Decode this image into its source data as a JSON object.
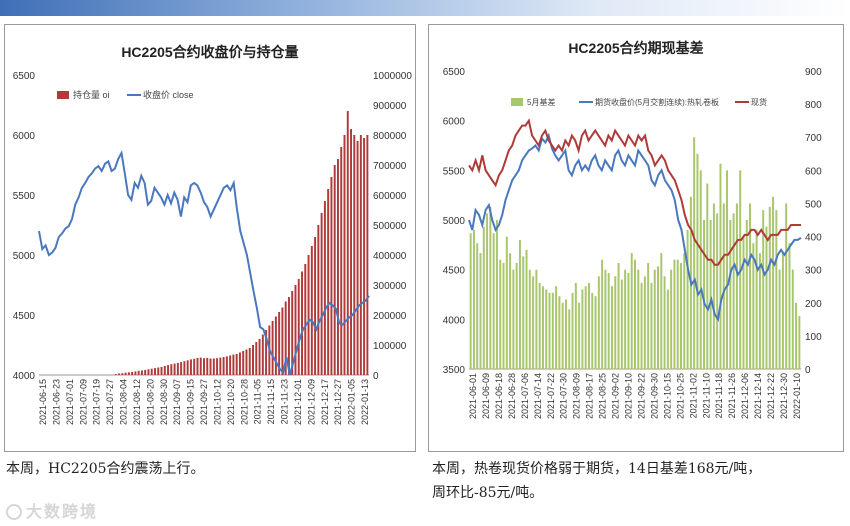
{
  "header": {
    "bar_color": "#3f6fb7"
  },
  "captions": {
    "left": "本周，HC2205合约震荡上行。",
    "right_line1": "本周，热卷现货价格弱于期货，14日基差168元/吨，",
    "right_line2": "周环比-85元/吨。"
  },
  "watermark": {
    "text": "大数跨境"
  },
  "chart_data": [
    {
      "type": "bar+line",
      "title": "HC2205合约收盘价与持仓量",
      "x_ticks": [
        "2021-06-15",
        "2021-06-23",
        "2021-07-01",
        "2021-07-09",
        "2021-07-19",
        "2021-07-27",
        "2021-08-04",
        "2021-08-12",
        "2021-08-20",
        "2021-08-30",
        "2021-09-07",
        "2021-09-15",
        "2021-09-27",
        "2021-10-12",
        "2021-10-20",
        "2021-10-28",
        "2021-11-05",
        "2021-11-15",
        "2021-11-23",
        "2021-12-01",
        "2021-12-09",
        "2021-12-17",
        "2021-12-27",
        "2022-01-05",
        "2022-01-13"
      ],
      "y_left": {
        "min": 4000,
        "max": 6500,
        "ticks": [
          4000,
          4500,
          5000,
          5500,
          6000,
          6500
        ]
      },
      "y_right": {
        "min": 0,
        "max": 1000000,
        "ticks": [
          0,
          100000,
          200000,
          300000,
          400000,
          500000,
          600000,
          700000,
          800000,
          900000,
          1000000
        ]
      },
      "legend": [
        "持仓量 oi",
        "收盘价 close"
      ],
      "colors": {
        "bar": "#b03a3a",
        "line": "#4a78be"
      },
      "close": [
        5200,
        5050,
        5080,
        5000,
        5020,
        5060,
        5150,
        5180,
        5220,
        5240,
        5300,
        5420,
        5480,
        5560,
        5600,
        5650,
        5680,
        5720,
        5740,
        5700,
        5760,
        5780,
        5700,
        5720,
        5800,
        5850,
        5680,
        5500,
        5460,
        5600,
        5560,
        5660,
        5600,
        5420,
        5450,
        5560,
        5520,
        5480,
        5420,
        5500,
        5430,
        5520,
        5460,
        5320,
        5480,
        5440,
        5580,
        5600,
        5580,
        5520,
        5440,
        5400,
        5320,
        5380,
        5440,
        5500,
        5560,
        5580,
        5540,
        5600,
        5380,
        5200,
        5100,
        5000,
        4850,
        4700,
        4560,
        4400,
        4380,
        4300,
        4200,
        4150,
        4100,
        4050,
        4020,
        4150,
        4000,
        4100,
        4200,
        4300,
        4380,
        4420,
        4460,
        4440,
        4380,
        4450,
        4500,
        4560,
        4600,
        4580,
        4550,
        4430,
        4420,
        4450,
        4480,
        4500,
        4540,
        4580,
        4600,
        4620,
        4660
      ],
      "oi": [
        0,
        0,
        0,
        0,
        0,
        0,
        0,
        0,
        0,
        0,
        0,
        0,
        0,
        0,
        0,
        0,
        0,
        0,
        0,
        0,
        0,
        0,
        0,
        3000,
        5000,
        6000,
        8000,
        9000,
        10000,
        12000,
        14000,
        15000,
        17000,
        19000,
        21000,
        23000,
        25000,
        27000,
        30000,
        33000,
        36000,
        38000,
        40000,
        43000,
        46000,
        49000,
        52000,
        54000,
        57000,
        58000,
        56000,
        57000,
        55000,
        55000,
        56000,
        58000,
        60000,
        62000,
        65000,
        68000,
        70000,
        75000,
        80000,
        85000,
        90000,
        100000,
        110000,
        120000,
        135000,
        150000,
        165000,
        180000,
        195000,
        210000,
        225000,
        245000,
        260000,
        280000,
        300000,
        320000,
        345000,
        370000,
        400000,
        430000,
        460000,
        500000,
        540000,
        580000,
        620000,
        660000,
        700000,
        720000,
        760000,
        800000,
        880000,
        820000,
        800000,
        780000,
        800000,
        790000,
        800000
      ]
    },
    {
      "type": "bar+line",
      "title": "HC2205合约期现基差",
      "x_ticks": [
        "2021-06-01",
        "2021-06-09",
        "2021-06-18",
        "2021-06-28",
        "2021-07-06",
        "2021-07-14",
        "2021-07-22",
        "2021-07-30",
        "2021-08-09",
        "2021-08-17",
        "2021-08-25",
        "2021-09-02",
        "2021-09-10",
        "2021-09-22",
        "2021-09-30",
        "2021-10-15",
        "2021-10-25",
        "2021-11-02",
        "2021-11-10",
        "2021-11-18",
        "2021-11-26",
        "2021-12-06",
        "2021-12-14",
        "2021-12-22",
        "2021-12-30",
        "2022-01-10"
      ],
      "y_left": {
        "min": 3500,
        "max": 6500,
        "ticks": [
          3500,
          4000,
          4500,
          5000,
          5500,
          6000,
          6500
        ]
      },
      "y_right": {
        "min": 0,
        "max": 900,
        "ticks": [
          0,
          100,
          200,
          300,
          400,
          500,
          600,
          700,
          800,
          900
        ]
      },
      "legend": [
        "5月基差",
        "期货收盘价(5月交割连续):热轧卷板",
        "现货"
      ],
      "colors": {
        "bar": "#a8c66c",
        "futures": "#4a78be",
        "spot": "#b03a3a"
      },
      "basis": [
        410,
        420,
        380,
        350,
        430,
        470,
        490,
        410,
        450,
        330,
        320,
        400,
        350,
        300,
        320,
        390,
        340,
        360,
        300,
        280,
        300,
        260,
        250,
        240,
        230,
        230,
        250,
        220,
        200,
        210,
        180,
        230,
        260,
        200,
        240,
        250,
        260,
        230,
        220,
        280,
        330,
        300,
        290,
        250,
        280,
        320,
        270,
        300,
        290,
        350,
        330,
        300,
        260,
        280,
        320,
        260,
        300,
        310,
        350,
        280,
        240,
        300,
        330,
        330,
        320,
        350,
        420,
        520,
        700,
        650,
        600,
        450,
        560,
        450,
        500,
        470,
        620,
        500,
        600,
        450,
        470,
        500,
        600,
        400,
        450,
        500,
        380,
        420,
        350,
        480,
        430,
        490,
        520,
        480,
        300,
        350,
        500,
        380,
        300,
        200,
        160
      ],
      "futures": [
        5000,
        4900,
        5100,
        5050,
        4950,
        5100,
        5150,
        5000,
        4900,
        4950,
        5050,
        5200,
        5300,
        5400,
        5450,
        5500,
        5600,
        5650,
        5700,
        5720,
        5750,
        5700,
        5820,
        5780,
        5850,
        5720,
        5650,
        5600,
        5650,
        5700,
        5500,
        5450,
        5550,
        5600,
        5500,
        5550,
        5500,
        5600,
        5650,
        5550,
        5500,
        5600,
        5550,
        5500,
        5650,
        5700,
        5600,
        5550,
        5650,
        5600,
        5550,
        5700,
        5650,
        5600,
        5550,
        5400,
        5350,
        5450,
        5500,
        5400,
        5350,
        5300,
        5200,
        5000,
        4900,
        4700,
        4500,
        4350,
        4400,
        4250,
        4300,
        4150,
        4100,
        4200,
        4050,
        4000,
        4200,
        4300,
        4350,
        4500,
        4550,
        4450,
        4500,
        4600,
        4550,
        4650,
        4600,
        4500,
        4550,
        4450,
        4500,
        4600,
        4550,
        4650,
        4700,
        4650,
        4700,
        4750,
        4800,
        4800,
        4820
      ],
      "spot": [
        5550,
        5500,
        5600,
        5500,
        5650,
        5500,
        5450,
        5400,
        5350,
        5450,
        5500,
        5600,
        5700,
        5750,
        5850,
        5900,
        5950,
        5950,
        6000,
        5850,
        5800,
        5750,
        5850,
        5900,
        5800,
        5750,
        5700,
        5750,
        5700,
        5800,
        5750,
        5850,
        5800,
        5700,
        5850,
        5900,
        5800,
        5850,
        5900,
        5850,
        5800,
        5750,
        5850,
        5800,
        5900,
        5850,
        5800,
        5750,
        5850,
        5800,
        5750,
        5850,
        5800,
        5850,
        5700,
        5650,
        5550,
        5600,
        5650,
        5600,
        5500,
        5450,
        5400,
        5300,
        5200,
        5050,
        4950,
        4900,
        4800,
        4750,
        4700,
        4650,
        4600,
        4600,
        4550,
        4550,
        4600,
        4650,
        4650,
        4700,
        4750,
        4800,
        4800,
        4850,
        4850,
        4900,
        4900,
        4850,
        4900,
        4850,
        4800,
        4850,
        4850,
        4850,
        4900,
        4900,
        4900,
        4950,
        4950,
        4950,
        4950
      ]
    }
  ]
}
